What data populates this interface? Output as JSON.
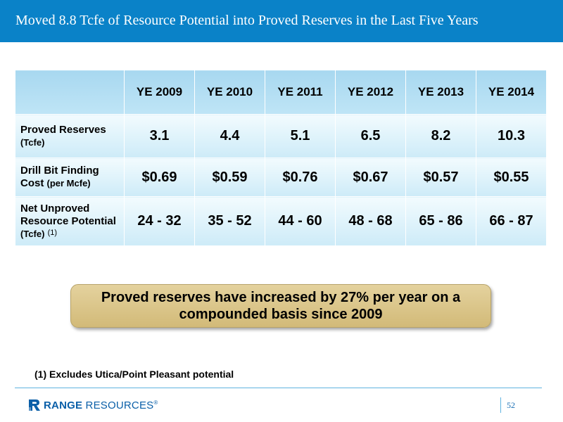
{
  "title": "Moved 8.8 Tcfe of Resource Potential into Proved Reserves in the Last Five Years",
  "table": {
    "columns": [
      "YE 2009",
      "YE 2010",
      "YE 2011",
      "YE 2012",
      "YE 2013",
      "YE 2014"
    ],
    "rows": [
      {
        "label_main": "Proved Reserves",
        "label_unit": "(Tcfe)",
        "footnote": "",
        "values": [
          "3.1",
          "4.4",
          "5.1",
          "6.5",
          "8.2",
          "10.3"
        ]
      },
      {
        "label_main": "Drill Bit Finding Cost",
        "label_unit": "(per Mcfe)",
        "footnote": "",
        "values": [
          "$0.69",
          "$0.59",
          "$0.76",
          "$0.67",
          "$0.57",
          "$0.55"
        ]
      },
      {
        "label_main": "Net Unproved Resource Potential",
        "label_unit": "(Tcfe)",
        "footnote": "(1)",
        "values": [
          "24 - 32",
          "35 - 52",
          "44 - 60",
          "48 - 68",
          "65 - 86",
          "66 - 87"
        ]
      }
    ]
  },
  "callout": "Proved reserves have increased by 27% per year on a compounded basis since 2009",
  "footnote": "(1)  Excludes Utica/Point Pleasant potential",
  "logo": {
    "bold": "RANGE",
    "light": "RESOURCES",
    "mark": "®"
  },
  "page_number": "52",
  "colors": {
    "title_bar": "#0a82c8",
    "table_header": "#a8d8f0",
    "table_body": "#cdebf8",
    "callout": "#d9c285",
    "logo": "#0a5fa8"
  }
}
